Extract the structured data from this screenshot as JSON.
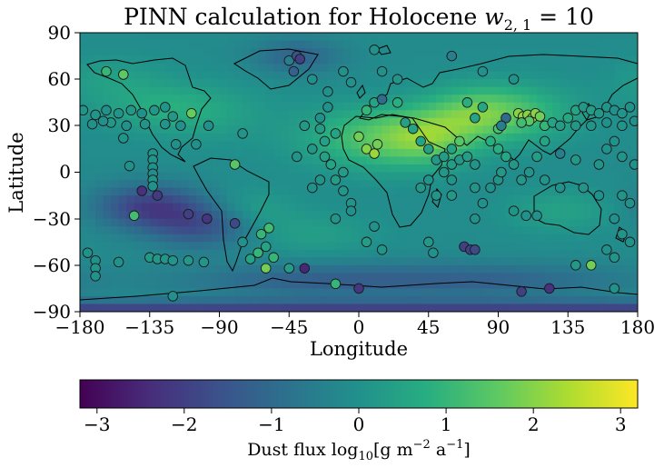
{
  "figure": {
    "title_prefix": "PINN calculation for Holocene ",
    "title_math": "w",
    "title_subscript": "2, 1",
    "title_suffix": " = 10"
  },
  "map": {
    "xlabel": "Longitude",
    "ylabel": "Latitude",
    "xticks": [
      "−180",
      "−135",
      "−90",
      "−45",
      "0",
      "45",
      "90",
      "135",
      "180"
    ],
    "yticks": [
      "90",
      "60",
      "30",
      "0",
      "−30",
      "−60",
      "−90"
    ],
    "xlim": [
      -180,
      180
    ],
    "ylim": [
      -90,
      90
    ]
  },
  "colorbar": {
    "ticks": [
      "−3",
      "−2",
      "−1",
      "0",
      "1",
      "2",
      "3"
    ],
    "range": [
      -3.2,
      3.2
    ],
    "label_prefix": "Dust flux log",
    "label_sub": "10",
    "label_units": "[g m",
    "label_exp1": "−2",
    "label_mid": " a",
    "label_exp2": "−1",
    "label_end": "]",
    "colormap": "viridis"
  },
  "chart_data": {
    "type": "scatter",
    "title": "PINN calculation for Holocene w2,1 = 10",
    "xlabel": "Longitude",
    "ylabel": "Latitude",
    "xlim": [
      -180,
      180
    ],
    "ylim": [
      -90,
      90
    ],
    "colorbar_label": "Dust flux log10[g m−2 a−1]",
    "colorbar_range": [
      -3.2,
      3.2
    ],
    "background_field": "PINN-predicted dust flux (log10), high over North Africa / Arabia / Asia, low over Southern Ocean and Antarctica",
    "points": [
      {
        "lon": -163,
        "lat": 65,
        "v": 1.0
      },
      {
        "lon": -152,
        "lat": 63,
        "v": 1.6
      },
      {
        "lon": -178,
        "lat": 40,
        "v": 0.1
      },
      {
        "lon": -170,
        "lat": 37,
        "v": 0.1
      },
      {
        "lon": -163,
        "lat": 40,
        "v": 0.0
      },
      {
        "lon": -155,
        "lat": 38,
        "v": 0.1
      },
      {
        "lon": -147,
        "lat": 40,
        "v": 0.2
      },
      {
        "lon": -140,
        "lat": 38,
        "v": 0.0
      },
      {
        "lon": -132,
        "lat": 40,
        "v": 0.2
      },
      {
        "lon": -125,
        "lat": 42,
        "v": 0.1
      },
      {
        "lon": -120,
        "lat": 36,
        "v": 0.2
      },
      {
        "lon": -108,
        "lat": 38,
        "v": 1.7
      },
      {
        "lon": -172,
        "lat": 31,
        "v": 0.0
      },
      {
        "lon": -160,
        "lat": 32,
        "v": 0.2
      },
      {
        "lon": -150,
        "lat": 30,
        "v": 0.0
      },
      {
        "lon": -138,
        "lat": 31,
        "v": 0.1
      },
      {
        "lon": -125,
        "lat": 31,
        "v": 0.1
      },
      {
        "lon": -115,
        "lat": 30,
        "v": 0.0
      },
      {
        "lon": -165,
        "lat": 33,
        "v": 0.0
      },
      {
        "lon": -152,
        "lat": 22,
        "v": 0.1
      },
      {
        "lon": -118,
        "lat": 18,
        "v": 0.0
      },
      {
        "lon": -105,
        "lat": 18,
        "v": 0.0
      },
      {
        "lon": -133,
        "lat": 12,
        "v": 0.1
      },
      {
        "lon": -133,
        "lat": 8,
        "v": 0.1
      },
      {
        "lon": -133,
        "lat": 3,
        "v": 0.0
      },
      {
        "lon": -133,
        "lat": -1,
        "v": -0.1
      },
      {
        "lon": -133,
        "lat": -5,
        "v": 0.1
      },
      {
        "lon": -133,
        "lat": -9,
        "v": 0.0
      },
      {
        "lon": -148,
        "lat": 4,
        "v": 0.0
      },
      {
        "lon": -97,
        "lat": 30,
        "v": 0.0
      },
      {
        "lon": -75,
        "lat": 25,
        "v": 0.1
      },
      {
        "lon": -80,
        "lat": 5,
        "v": 1.5
      },
      {
        "lon": -140,
        "lat": -12,
        "v": -2.3
      },
      {
        "lon": -130,
        "lat": -15,
        "v": -2.1
      },
      {
        "lon": -145,
        "lat": -28,
        "v": 1.2
      },
      {
        "lon": -110,
        "lat": -27,
        "v": -2.0
      },
      {
        "lon": -98,
        "lat": -30,
        "v": -2.2
      },
      {
        "lon": -80,
        "lat": -33,
        "v": -1.8
      },
      {
        "lon": -75,
        "lat": -45,
        "v": 0.0
      },
      {
        "lon": -58,
        "lat": -36,
        "v": 1.2
      },
      {
        "lon": -63,
        "lat": -40,
        "v": 1.0
      },
      {
        "lon": -60,
        "lat": -48,
        "v": 0.5
      },
      {
        "lon": -65,
        "lat": -52,
        "v": 1.0
      },
      {
        "lon": -55,
        "lat": -55,
        "v": 1.0
      },
      {
        "lon": -70,
        "lat": -56,
        "v": 0.5
      },
      {
        "lon": -60,
        "lat": -62,
        "v": 1.8
      },
      {
        "lon": -135,
        "lat": -55,
        "v": 0.2
      },
      {
        "lon": -130,
        "lat": -56,
        "v": 0.2
      },
      {
        "lon": -125,
        "lat": -56,
        "v": 0.1
      },
      {
        "lon": -120,
        "lat": -57,
        "v": 0.1
      },
      {
        "lon": -110,
        "lat": -57,
        "v": 0.2
      },
      {
        "lon": -100,
        "lat": -58,
        "v": 0.1
      },
      {
        "lon": -120,
        "lat": -80,
        "v": 0.0
      },
      {
        "lon": -175,
        "lat": -52,
        "v": 0.0
      },
      {
        "lon": -170,
        "lat": -57,
        "v": 0.0
      },
      {
        "lon": -170,
        "lat": -62,
        "v": 0.1
      },
      {
        "lon": -170,
        "lat": -67,
        "v": 0.0
      },
      {
        "lon": -155,
        "lat": -58,
        "v": 0.0
      },
      {
        "lon": -45,
        "lat": 72,
        "v": -0.5
      },
      {
        "lon": -40,
        "lat": 75,
        "v": -1.5
      },
      {
        "lon": -38,
        "lat": 73,
        "v": -2.0
      },
      {
        "lon": -42,
        "lat": 65,
        "v": -1.2
      },
      {
        "lon": -30,
        "lat": 60,
        "v": 0.0
      },
      {
        "lon": -20,
        "lat": 52,
        "v": 0.0
      },
      {
        "lon": 10,
        "lat": 79,
        "v": 0.0
      },
      {
        "lon": 60,
        "lat": 75,
        "v": -0.5
      },
      {
        "lon": 80,
        "lat": 65,
        "v": 0.0
      },
      {
        "lon": 100,
        "lat": 60,
        "v": 0.0
      },
      {
        "lon": -10,
        "lat": 65,
        "v": 0.0
      },
      {
        "lon": -20,
        "lat": 42,
        "v": 0.0
      },
      {
        "lon": -25,
        "lat": 35,
        "v": 0.0
      },
      {
        "lon": -35,
        "lat": 30,
        "v": 0.2
      },
      {
        "lon": -25,
        "lat": 28,
        "v": 0.3
      },
      {
        "lon": -15,
        "lat": 25,
        "v": 0.5
      },
      {
        "lon": -22,
        "lat": 20,
        "v": 0.4
      },
      {
        "lon": -30,
        "lat": 15,
        "v": 0.2
      },
      {
        "lon": -40,
        "lat": 10,
        "v": 0.1
      },
      {
        "lon": -22,
        "lat": 10,
        "v": 0.4
      },
      {
        "lon": -18,
        "lat": 5,
        "v": 0.5
      },
      {
        "lon": -10,
        "lat": 0,
        "v": 0.3
      },
      {
        "lon": -15,
        "lat": -5,
        "v": 0.3
      },
      {
        "lon": -25,
        "lat": -5,
        "v": 0.1
      },
      {
        "lon": -30,
        "lat": -10,
        "v": 0.0
      },
      {
        "lon": -10,
        "lat": -12,
        "v": 0.2
      },
      {
        "lon": -5,
        "lat": -20,
        "v": 0.1
      },
      {
        "lon": -15,
        "lat": -30,
        "v": 0.1
      },
      {
        "lon": -5,
        "lat": -25,
        "v": 0.0
      },
      {
        "lon": 10,
        "lat": -35,
        "v": 0.0
      },
      {
        "lon": 5,
        "lat": -45,
        "v": 0.3
      },
      {
        "lon": 15,
        "lat": -50,
        "v": 0.1
      },
      {
        "lon": -15,
        "lat": -72,
        "v": 1.0
      },
      {
        "lon": 0,
        "lat": -75,
        "v": -2.2
      },
      {
        "lon": -45,
        "lat": -62,
        "v": 0.3
      },
      {
        "lon": -35,
        "lat": -62,
        "v": -2.5
      },
      {
        "lon": 5,
        "lat": 15,
        "v": 2.0
      },
      {
        "lon": 10,
        "lat": 12,
        "v": 2.2
      },
      {
        "lon": 12,
        "lat": 18,
        "v": 1.8
      },
      {
        "lon": 0,
        "lat": 23,
        "v": 1.8
      },
      {
        "lon": 5,
        "lat": 40,
        "v": 1.0
      },
      {
        "lon": 10,
        "lat": 45,
        "v": 0.5
      },
      {
        "lon": 15,
        "lat": 47,
        "v": -1.0
      },
      {
        "lon": 25,
        "lat": 45,
        "v": 0.8
      },
      {
        "lon": 30,
        "lat": 32,
        "v": 0.4
      },
      {
        "lon": 35,
        "lat": 28,
        "v": 0.5
      },
      {
        "lon": 40,
        "lat": 20,
        "v": 0.5
      },
      {
        "lon": 45,
        "lat": 15,
        "v": 0.4
      },
      {
        "lon": 50,
        "lat": 8,
        "v": 0.2
      },
      {
        "lon": 55,
        "lat": 10,
        "v": 0.3
      },
      {
        "lon": 60,
        "lat": 5,
        "v": 0.3
      },
      {
        "lon": 65,
        "lat": 8,
        "v": 0.2
      },
      {
        "lon": 70,
        "lat": 10,
        "v": 0.3
      },
      {
        "lon": 75,
        "lat": 5,
        "v": 0.1
      },
      {
        "lon": 65,
        "lat": 20,
        "v": 1.5
      },
      {
        "lon": 60,
        "lat": 15,
        "v": 0.5
      },
      {
        "lon": 55,
        "lat": 0,
        "v": 0.2
      },
      {
        "lon": 60,
        "lat": -5,
        "v": 0.1
      },
      {
        "lon": 45,
        "lat": -5,
        "v": 0.1
      },
      {
        "lon": 40,
        "lat": -10,
        "v": 0.2
      },
      {
        "lon": 50,
        "lat": -15,
        "v": 0.1
      },
      {
        "lon": 60,
        "lat": -15,
        "v": 0.2
      },
      {
        "lon": 75,
        "lat": -10,
        "v": 0.1
      },
      {
        "lon": 85,
        "lat": -10,
        "v": 0.0
      },
      {
        "lon": 90,
        "lat": -5,
        "v": 0.1
      },
      {
        "lon": 80,
        "lat": -20,
        "v": 0.0
      },
      {
        "lon": 75,
        "lat": -30,
        "v": 0.0
      },
      {
        "lon": 45,
        "lat": -45,
        "v": 0.2
      },
      {
        "lon": 68,
        "lat": -48,
        "v": -2.0
      },
      {
        "lon": 72,
        "lat": -50,
        "v": -2.0
      },
      {
        "lon": 75,
        "lat": -50,
        "v": -1.8
      },
      {
        "lon": 48,
        "lat": -52,
        "v": 0.0
      },
      {
        "lon": 90,
        "lat": 28,
        "v": 1.3
      },
      {
        "lon": 85,
        "lat": 20,
        "v": 0.8
      },
      {
        "lon": 90,
        "lat": 15,
        "v": 0.8
      },
      {
        "lon": 95,
        "lat": 10,
        "v": 0.6
      },
      {
        "lon": 92,
        "lat": 0,
        "v": 0.2
      },
      {
        "lon": 100,
        "lat": 5,
        "v": 0.2
      },
      {
        "lon": 103,
        "lat": 38,
        "v": 2.0
      },
      {
        "lon": 106,
        "lat": 36,
        "v": 2.1
      },
      {
        "lon": 109,
        "lat": 37,
        "v": 2.0
      },
      {
        "lon": 112,
        "lat": 35,
        "v": 2.2
      },
      {
        "lon": 114,
        "lat": 38,
        "v": 2.0
      },
      {
        "lon": 117,
        "lat": 36,
        "v": 1.8
      },
      {
        "lon": 110,
        "lat": 33,
        "v": 1.5
      },
      {
        "lon": 105,
        "lat": 32,
        "v": 1.2
      },
      {
        "lon": 95,
        "lat": 35,
        "v": -1.0
      },
      {
        "lon": 92,
        "lat": 30,
        "v": -0.5
      },
      {
        "lon": 120,
        "lat": 30,
        "v": 1.0
      },
      {
        "lon": 125,
        "lat": 32,
        "v": 0.5
      },
      {
        "lon": 130,
        "lat": 30,
        "v": 0.3
      },
      {
        "lon": 135,
        "lat": 35,
        "v": 0.6
      },
      {
        "lon": 140,
        "lat": 40,
        "v": 0.5
      },
      {
        "lon": 145,
        "lat": 42,
        "v": 0.2
      },
      {
        "lon": 150,
        "lat": 40,
        "v": 0.3
      },
      {
        "lon": 155,
        "lat": 38,
        "v": 0.2
      },
      {
        "lon": 160,
        "lat": 42,
        "v": 0.1
      },
      {
        "lon": 165,
        "lat": 40,
        "v": 0.0
      },
      {
        "lon": 170,
        "lat": 38,
        "v": 0.1
      },
      {
        "lon": 175,
        "lat": 42,
        "v": 0.0
      },
      {
        "lon": 140,
        "lat": 30,
        "v": 0.2
      },
      {
        "lon": 150,
        "lat": 30,
        "v": 0.1
      },
      {
        "lon": 160,
        "lat": 32,
        "v": 0.0
      },
      {
        "lon": 170,
        "lat": 30,
        "v": 0.1
      },
      {
        "lon": 178,
        "lat": 33,
        "v": 0.0
      },
      {
        "lon": 130,
        "lat": 12,
        "v": -0.5
      },
      {
        "lon": 140,
        "lat": 8,
        "v": 0.2
      },
      {
        "lon": 155,
        "lat": 5,
        "v": 0.1
      },
      {
        "lon": 160,
        "lat": 15,
        "v": 0.0
      },
      {
        "lon": 165,
        "lat": 20,
        "v": 0.0
      },
      {
        "lon": 170,
        "lat": 10,
        "v": 0.1
      },
      {
        "lon": 178,
        "lat": 5,
        "v": 0.0
      },
      {
        "lon": 120,
        "lat": 20,
        "v": 0.5
      },
      {
        "lon": 115,
        "lat": 10,
        "v": 0.3
      },
      {
        "lon": 110,
        "lat": 0,
        "v": 0.1
      },
      {
        "lon": 105,
        "lat": -5,
        "v": 0.2
      },
      {
        "lon": 120,
        "lat": -5,
        "v": 0.1
      },
      {
        "lon": 130,
        "lat": -10,
        "v": 0.0
      },
      {
        "lon": 145,
        "lat": -10,
        "v": 0.1
      },
      {
        "lon": 155,
        "lat": -15,
        "v": 0.0
      },
      {
        "lon": 170,
        "lat": -15,
        "v": 0.1
      },
      {
        "lon": 175,
        "lat": -20,
        "v": 0.0
      },
      {
        "lon": 165,
        "lat": -30,
        "v": 0.0
      },
      {
        "lon": 170,
        "lat": -40,
        "v": 0.1
      },
      {
        "lon": 175,
        "lat": -45,
        "v": 0.0
      },
      {
        "lon": 160,
        "lat": -50,
        "v": 0.0
      },
      {
        "lon": 165,
        "lat": -55,
        "v": 0.1
      },
      {
        "lon": 150,
        "lat": -60,
        "v": 1.8
      },
      {
        "lon": 140,
        "lat": -60,
        "v": 0.2
      },
      {
        "lon": 165,
        "lat": -75,
        "v": 0.0
      },
      {
        "lon": 105,
        "lat": -77,
        "v": -2.0
      },
      {
        "lon": 123,
        "lat": -75,
        "v": -2.3
      },
      {
        "lon": 115,
        "lat": -28,
        "v": 0.0
      },
      {
        "lon": 108,
        "lat": -28,
        "v": 0.0
      },
      {
        "lon": 100,
        "lat": -25,
        "v": 0.1
      },
      {
        "lon": 75,
        "lat": 35,
        "v": 0.5
      },
      {
        "lon": 70,
        "lat": 45,
        "v": 0.8
      },
      {
        "lon": 80,
        "lat": 42,
        "v": 0.6
      },
      {
        "lon": 15,
        "lat": 65,
        "v": 0.0
      },
      {
        "lon": 25,
        "lat": 60,
        "v": 0.1
      },
      {
        "lon": -5,
        "lat": 58,
        "v": 0.0
      }
    ]
  }
}
